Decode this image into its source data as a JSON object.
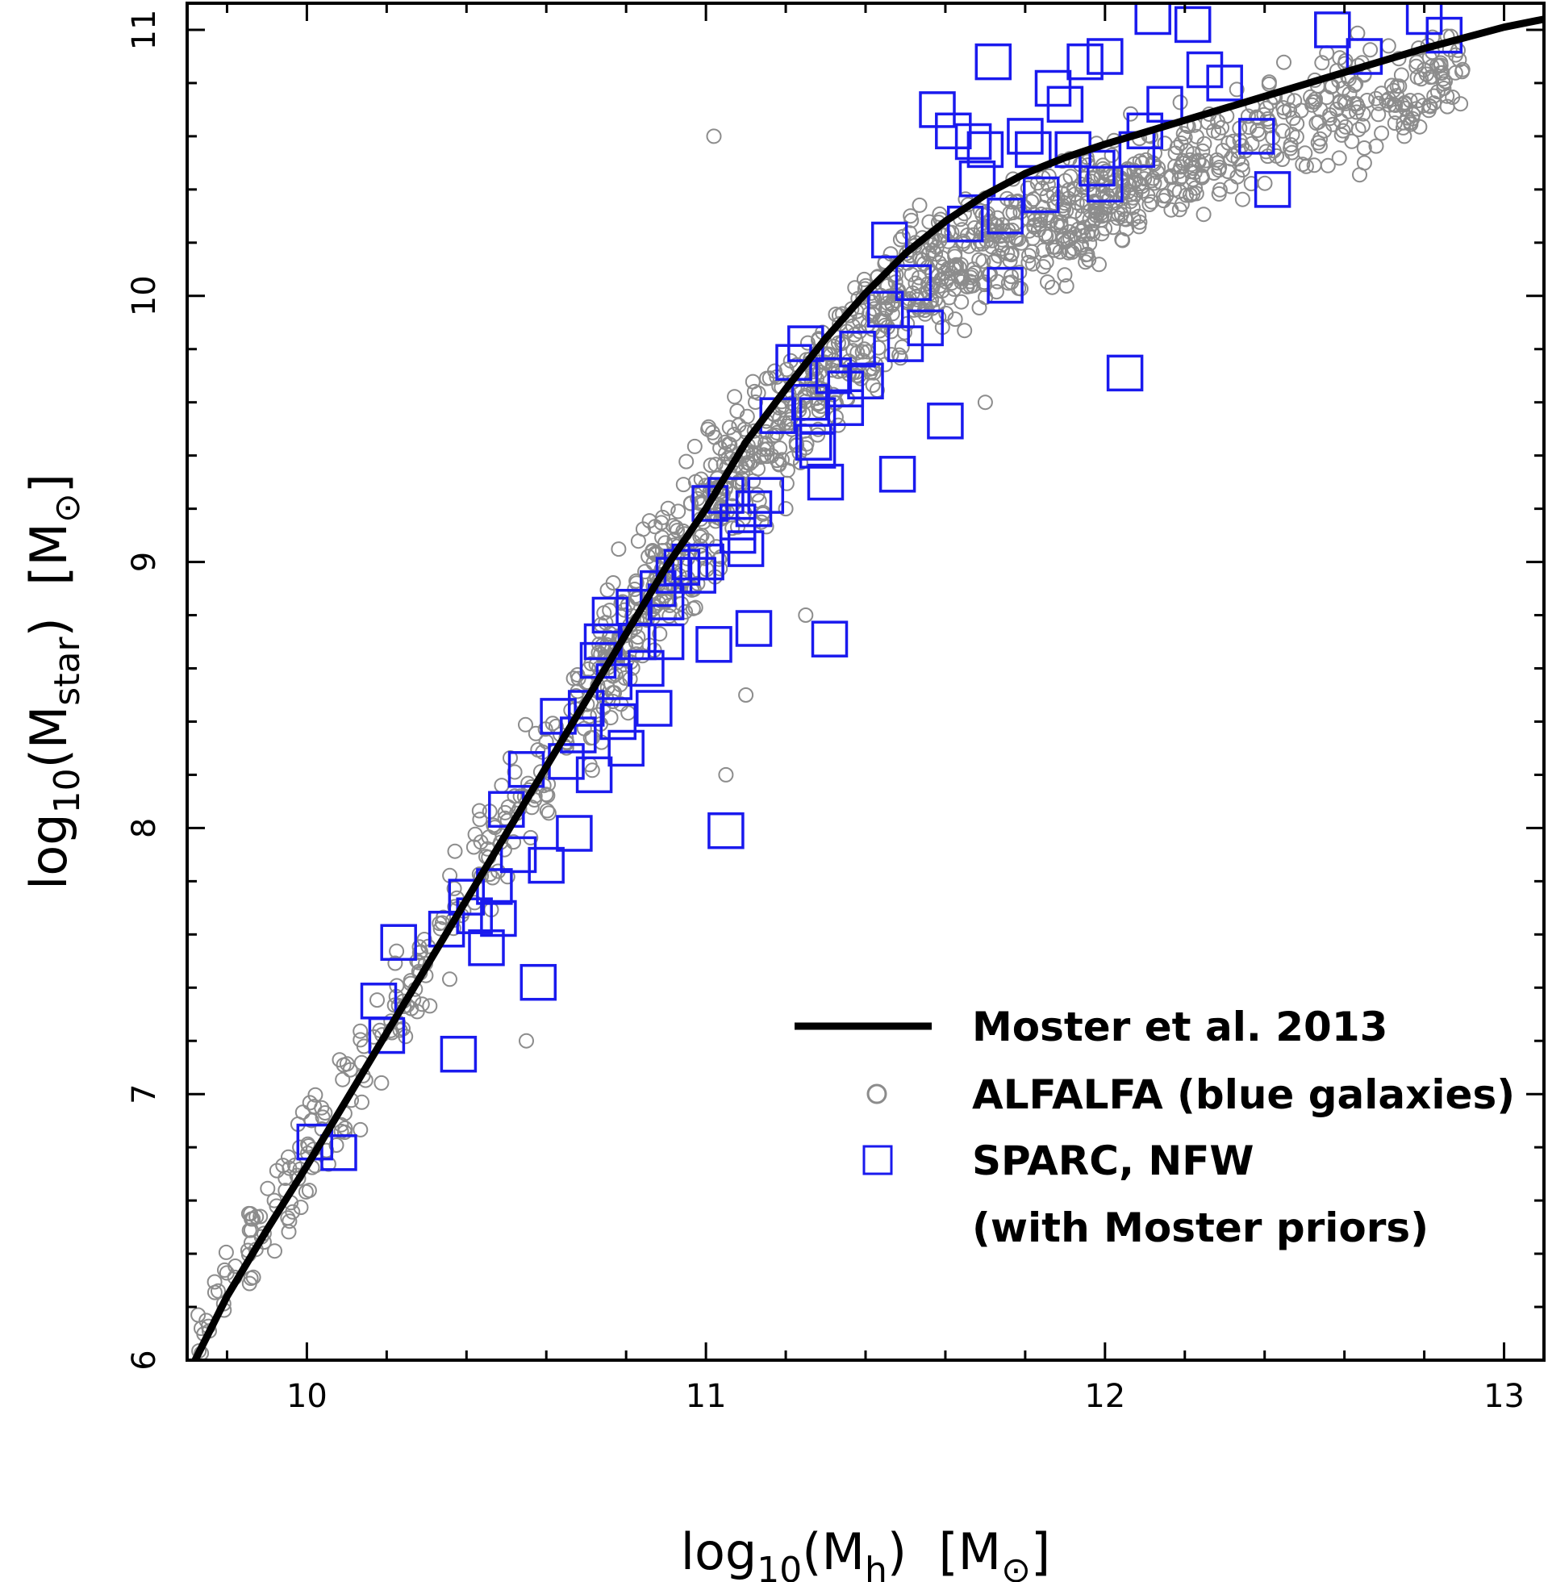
{
  "chart_data": {
    "type": "scatter",
    "title": "",
    "xlabel": "log10(Mh) [M⊙]",
    "ylabel": "log10(Mstar) [M⊙]",
    "xlim": [
      9.7,
      13.1
    ],
    "ylim": [
      6.0,
      11.1
    ],
    "xticks": [
      10,
      11,
      12,
      13
    ],
    "yticks": [
      6,
      7,
      8,
      9,
      10,
      11
    ],
    "xtick_labels": [
      "10",
      "11",
      "12",
      "13"
    ],
    "ytick_labels": [
      "6",
      "7",
      "8",
      "9",
      "10",
      "11"
    ],
    "axis_text": {
      "x_prefix": "log",
      "x_sub": "10",
      "x_var": "(M",
      "x_var_sub": "h",
      "x_unit": ")  [M",
      "x_end": "]",
      "y_prefix": "log",
      "y_sub": "10",
      "y_var": "(M",
      "y_var_sub": "star",
      "y_unit": ")  [M",
      "y_end": "]",
      "sun_symbol": "⊙"
    },
    "legend": {
      "position": "lower-right",
      "entries": [
        {
          "label": "Moster et al. 2013",
          "marker": "line",
          "color": "#000000"
        },
        {
          "label": "ALFALFA (blue galaxies)",
          "marker": "circle",
          "color": "#888888"
        },
        {
          "label": "SPARC, NFW",
          "marker": "square",
          "color": "#1a1aee"
        },
        {
          "label": "(with Moster priors)",
          "marker": "none",
          "color": "#000000"
        }
      ]
    },
    "colors": {
      "curve": "#000000",
      "alfalfa": "#8c8c8c",
      "sparc": "#1a1aee",
      "axes": "#000000"
    },
    "series": [
      {
        "name": "Moster et al. 2013",
        "kind": "line",
        "x": [
          9.72,
          9.8,
          9.9,
          10.0,
          10.1,
          10.2,
          10.3,
          10.4,
          10.5,
          10.6,
          10.7,
          10.8,
          10.9,
          11.0,
          11.1,
          11.2,
          11.3,
          11.4,
          11.5,
          11.6,
          11.7,
          11.8,
          11.9,
          12.0,
          12.2,
          12.4,
          12.6,
          12.8,
          13.0,
          13.1
        ],
        "y": [
          6.0,
          6.24,
          6.49,
          6.73,
          6.98,
          7.23,
          7.48,
          7.73,
          7.98,
          8.23,
          8.48,
          8.73,
          8.98,
          9.2,
          9.45,
          9.65,
          9.84,
          10.01,
          10.16,
          10.28,
          10.38,
          10.46,
          10.52,
          10.57,
          10.66,
          10.75,
          10.84,
          10.93,
          11.01,
          11.04
        ]
      },
      {
        "name": "ALFALFA (blue galaxies)",
        "kind": "scatter",
        "band": {
          "x": [
            9.72,
            10.0,
            10.5,
            11.0,
            11.5,
            12.0,
            12.5,
            12.9
          ],
          "y": [
            6.1,
            6.78,
            8.0,
            9.2,
            10.05,
            10.35,
            10.7,
            10.85
          ],
          "spread": [
            0.12,
            0.18,
            0.22,
            0.24,
            0.22,
            0.18,
            0.18,
            0.15
          ]
        },
        "n_points": 1400,
        "outliers": [
          [
            11.02,
            10.6
          ],
          [
            12.75,
            10.6
          ],
          [
            12.8,
            10.85
          ],
          [
            12.65,
            10.5
          ],
          [
            11.7,
            9.6
          ],
          [
            11.25,
            8.8
          ],
          [
            10.55,
            7.2
          ],
          [
            11.1,
            8.5
          ],
          [
            11.2,
            9.2
          ],
          [
            11.05,
            8.2
          ]
        ]
      },
      {
        "name": "SPARC, NFW",
        "kind": "scatter",
        "points": [
          [
            10.02,
            6.82
          ],
          [
            10.08,
            6.78
          ],
          [
            10.18,
            7.35
          ],
          [
            10.2,
            7.22
          ],
          [
            10.23,
            7.57
          ],
          [
            10.38,
            7.15
          ],
          [
            10.35,
            7.62
          ],
          [
            10.4,
            7.74
          ],
          [
            10.42,
            7.67
          ],
          [
            10.45,
            7.55
          ],
          [
            10.47,
            7.78
          ],
          [
            10.48,
            7.66
          ],
          [
            10.53,
            7.9
          ],
          [
            10.5,
            8.07
          ],
          [
            10.55,
            8.22
          ],
          [
            10.58,
            7.42
          ],
          [
            10.6,
            7.86
          ],
          [
            10.63,
            8.42
          ],
          [
            10.65,
            8.25
          ],
          [
            10.67,
            7.98
          ],
          [
            10.68,
            8.35
          ],
          [
            10.7,
            8.45
          ],
          [
            10.72,
            8.2
          ],
          [
            10.74,
            8.7
          ],
          [
            10.77,
            8.55
          ],
          [
            10.78,
            8.4
          ],
          [
            10.8,
            8.3
          ],
          [
            10.82,
            8.83
          ],
          [
            10.83,
            8.7
          ],
          [
            10.85,
            8.6
          ],
          [
            10.87,
            8.45
          ],
          [
            10.88,
            8.9
          ],
          [
            10.9,
            8.7
          ],
          [
            10.92,
            8.95
          ],
          [
            10.94,
            8.98
          ],
          [
            10.96,
            9.0
          ],
          [
            10.98,
            8.95
          ],
          [
            11.01,
            9.22
          ],
          [
            11.02,
            8.69
          ],
          [
            11.05,
            9.25
          ],
          [
            11.05,
            7.99
          ],
          [
            11.08,
            9.15
          ],
          [
            11.1,
            9.05
          ],
          [
            11.12,
            9.2
          ],
          [
            11.12,
            8.75
          ],
          [
            11.15,
            9.25
          ],
          [
            11.22,
            9.75
          ],
          [
            11.25,
            9.82
          ],
          [
            11.26,
            9.6
          ],
          [
            11.28,
            9.55
          ],
          [
            11.28,
            9.42
          ],
          [
            11.3,
            9.3
          ],
          [
            11.31,
            8.71
          ],
          [
            11.32,
            9.7
          ],
          [
            11.35,
            9.58
          ],
          [
            11.38,
            9.8
          ],
          [
            11.4,
            9.68
          ],
          [
            11.45,
            9.95
          ],
          [
            11.46,
            10.21
          ],
          [
            11.48,
            9.33
          ],
          [
            11.5,
            9.82
          ],
          [
            11.52,
            10.05
          ],
          [
            11.55,
            9.88
          ],
          [
            11.58,
            10.7
          ],
          [
            11.6,
            9.53
          ],
          [
            11.62,
            10.62
          ],
          [
            11.65,
            10.27
          ],
          [
            11.67,
            10.58
          ],
          [
            11.68,
            10.44
          ],
          [
            11.7,
            10.55
          ],
          [
            11.72,
            10.88
          ],
          [
            11.75,
            10.3
          ],
          [
            11.75,
            10.04
          ],
          [
            11.8,
            10.6
          ],
          [
            11.82,
            10.55
          ],
          [
            11.84,
            10.38
          ],
          [
            11.87,
            10.78
          ],
          [
            11.9,
            10.72
          ],
          [
            11.92,
            10.55
          ],
          [
            11.95,
            10.88
          ],
          [
            11.98,
            10.48
          ],
          [
            12.0,
            10.9
          ],
          [
            12.0,
            10.42
          ],
          [
            12.05,
            9.71
          ],
          [
            12.08,
            10.55
          ],
          [
            12.1,
            10.62
          ],
          [
            12.15,
            10.72
          ],
          [
            12.12,
            11.05
          ],
          [
            12.22,
            11.02
          ],
          [
            12.25,
            10.85
          ],
          [
            12.3,
            10.8
          ],
          [
            12.38,
            10.6
          ],
          [
            12.42,
            10.4
          ],
          [
            12.57,
            11.0
          ],
          [
            12.65,
            10.9
          ],
          [
            12.8,
            11.05
          ],
          [
            12.85,
            10.98
          ],
          [
            10.76,
            8.8
          ],
          [
            10.73,
            8.63
          ],
          [
            10.9,
            8.85
          ],
          [
            11.0,
            9.0
          ],
          [
            11.08,
            9.1
          ],
          [
            11.18,
            9.55
          ],
          [
            11.27,
            9.45
          ],
          [
            11.35,
            9.65
          ]
        ]
      }
    ]
  }
}
